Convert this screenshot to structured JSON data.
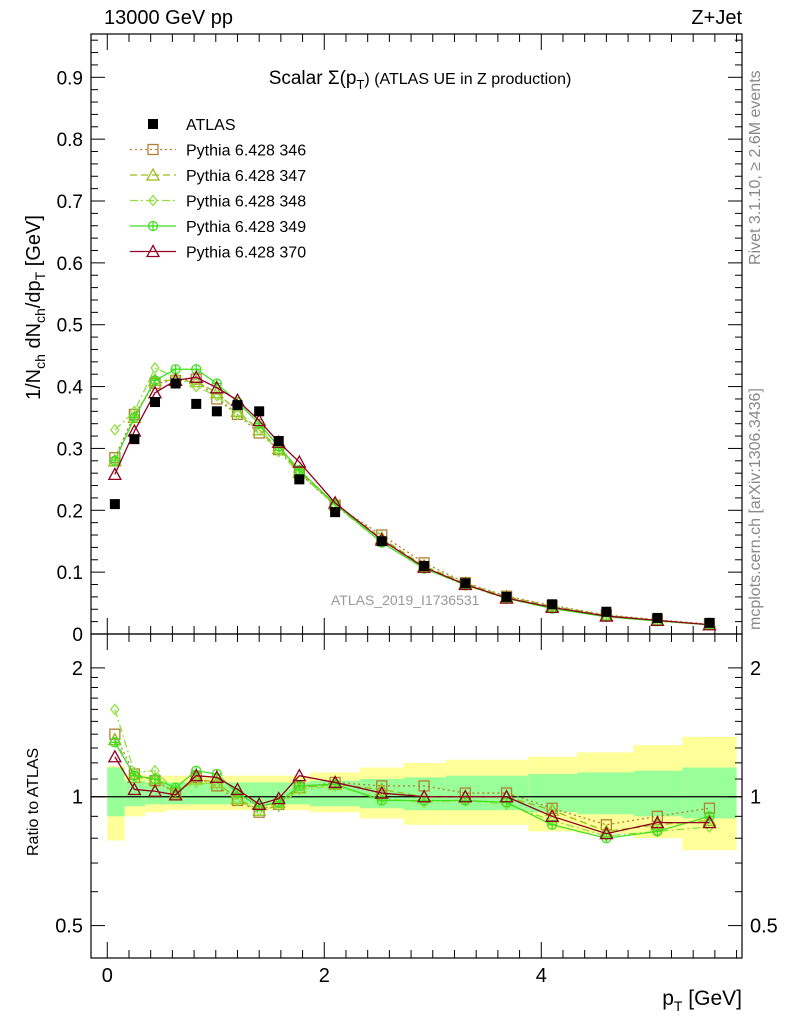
{
  "header": {
    "left": "13000 GeV pp",
    "right": "Z+Jet"
  },
  "side_labels": {
    "rivet": "Rivet 3.1.10, ≥ 2.6M events",
    "mcplots": "mcplots.cern.ch [arXiv:1306.3436]"
  },
  "watermark": "ATLAS_2019_I1736531",
  "chart_data": [
    {
      "type": "scatter",
      "panel": "main",
      "title_main": "Scalar Σ(p",
      "title_sub": "T",
      "title_tail": ") (ATLAS UE in Z production)",
      "ylabel": "1/N_ch dN_ch/dp_T [GeV]",
      "ylim": [
        0,
        0.97
      ],
      "yticks": [
        "0",
        "0.1",
        "0.2",
        "0.3",
        "0.4",
        "0.5",
        "0.6",
        "0.7",
        "0.8",
        "0.9"
      ],
      "xlim": [
        -0.15,
        5.85
      ],
      "x": [
        0.07,
        0.25,
        0.44,
        0.63,
        0.82,
        1.01,
        1.2,
        1.4,
        1.58,
        1.77,
        2.1,
        2.53,
        2.92,
        3.3,
        3.68,
        4.1,
        4.6,
        5.07,
        5.55
      ],
      "series": [
        {
          "name": "ATLAS",
          "values": [
            0.21,
            0.315,
            0.375,
            0.405,
            0.372,
            0.36,
            0.37,
            0.36,
            0.312,
            0.25,
            0.197,
            0.15,
            0.11,
            0.082,
            0.06,
            0.048,
            0.036,
            0.026,
            0.018
          ]
        },
        {
          "name": "Pythia 6.428 346",
          "values": [
            0.285,
            0.355,
            0.405,
            0.41,
            0.412,
            0.38,
            0.355,
            0.325,
            0.298,
            0.26,
            0.208,
            0.16,
            0.115,
            0.083,
            0.061,
            0.046,
            0.031,
            0.023,
            0.016
          ]
        },
        {
          "name": "Pythia 6.428 347",
          "values": [
            0.28,
            0.35,
            0.41,
            0.41,
            0.408,
            0.39,
            0.36,
            0.33,
            0.3,
            0.262,
            0.21,
            0.155,
            0.11,
            0.082,
            0.06,
            0.045,
            0.03,
            0.022,
            0.015
          ]
        },
        {
          "name": "Pythia 6.428 348",
          "values": [
            0.33,
            0.36,
            0.43,
            0.415,
            0.4,
            0.385,
            0.355,
            0.33,
            0.295,
            0.26,
            0.208,
            0.148,
            0.106,
            0.079,
            0.057,
            0.042,
            0.028,
            0.021,
            0.015
          ]
        },
        {
          "name": "Pythia 6.428 349",
          "values": [
            0.28,
            0.35,
            0.41,
            0.428,
            0.428,
            0.405,
            0.375,
            0.34,
            0.303,
            0.265,
            0.21,
            0.148,
            0.106,
            0.08,
            0.058,
            0.041,
            0.028,
            0.021,
            0.015
          ]
        },
        {
          "name": "Pythia 6.428 370",
          "values": [
            0.258,
            0.328,
            0.39,
            0.41,
            0.415,
            0.398,
            0.378,
            0.345,
            0.31,
            0.278,
            0.212,
            0.152,
            0.108,
            0.08,
            0.058,
            0.043,
            0.029,
            0.022,
            0.015
          ]
        }
      ],
      "legend_position": "top-left"
    },
    {
      "type": "scatter",
      "panel": "ratio",
      "ylabel": "Ratio to ATLAS",
      "xlabel_main": "p",
      "xlabel_sub": "T",
      "xlabel_tail": " [GeV]",
      "ylim": [
        0.42,
        2.4
      ],
      "ylog": true,
      "yticks": [
        "0.5",
        "1",
        "2"
      ],
      "xticks": [
        "0",
        "2",
        "4"
      ],
      "x": [
        0.07,
        0.25,
        0.44,
        0.63,
        0.82,
        1.01,
        1.2,
        1.4,
        1.58,
        1.77,
        2.1,
        2.53,
        2.92,
        3.3,
        3.68,
        4.1,
        4.6,
        5.07,
        5.55
      ],
      "bin_edges": [
        0.0,
        0.16,
        0.35,
        0.54,
        0.73,
        0.92,
        1.11,
        1.3,
        1.49,
        1.68,
        1.87,
        2.33,
        2.73,
        3.12,
        3.49,
        3.88,
        4.33,
        4.85,
        5.3,
        5.8
      ],
      "band_green": [
        [
          0.9,
          1.17
        ],
        [
          0.95,
          1.09
        ],
        [
          0.96,
          1.08
        ],
        [
          0.96,
          1.08
        ],
        [
          0.96,
          1.08
        ],
        [
          0.96,
          1.08
        ],
        [
          0.96,
          1.08
        ],
        [
          0.96,
          1.08
        ],
        [
          0.96,
          1.08
        ],
        [
          0.96,
          1.08
        ],
        [
          0.95,
          1.09
        ],
        [
          0.94,
          1.1
        ],
        [
          0.93,
          1.11
        ],
        [
          0.93,
          1.12
        ],
        [
          0.93,
          1.12
        ],
        [
          0.92,
          1.13
        ],
        [
          0.91,
          1.14
        ],
        [
          0.9,
          1.15
        ],
        [
          0.89,
          1.17
        ]
      ],
      "band_yellow": [
        [
          0.79,
          1.18
        ],
        [
          0.9,
          1.13
        ],
        [
          0.92,
          1.12
        ],
        [
          0.93,
          1.12
        ],
        [
          0.93,
          1.12
        ],
        [
          0.93,
          1.12
        ],
        [
          0.93,
          1.12
        ],
        [
          0.93,
          1.12
        ],
        [
          0.93,
          1.12
        ],
        [
          0.93,
          1.12
        ],
        [
          0.92,
          1.14
        ],
        [
          0.89,
          1.17
        ],
        [
          0.86,
          1.2
        ],
        [
          0.86,
          1.22
        ],
        [
          0.86,
          1.22
        ],
        [
          0.83,
          1.24
        ],
        [
          0.82,
          1.27
        ],
        [
          0.8,
          1.32
        ],
        [
          0.75,
          1.38
        ]
      ],
      "series": [
        {
          "name": "Pythia 6.428 346",
          "values": [
            1.4,
            1.13,
            1.09,
            1.02,
            1.11,
            1.06,
            0.98,
            0.92,
            0.96,
            1.05,
            1.08,
            1.06,
            1.06,
            1.02,
            1.02,
            0.94,
            0.86,
            0.9,
            0.94
          ]
        },
        {
          "name": "Pythia 6.428 347",
          "values": [
            1.36,
            1.11,
            1.1,
            1.02,
            1.1,
            1.08,
            0.99,
            0.93,
            0.97,
            1.05,
            1.07,
            1.04,
            1.0,
            1.0,
            1.0,
            0.93,
            0.83,
            0.86,
            0.88
          ]
        },
        {
          "name": "Pythia 6.428 348",
          "values": [
            1.6,
            1.14,
            1.15,
            1.03,
            1.08,
            1.07,
            0.98,
            0.93,
            0.95,
            1.04,
            1.06,
            0.99,
            0.97,
            0.98,
            0.96,
            0.88,
            0.81,
            0.83,
            0.85
          ]
        },
        {
          "name": "Pythia 6.428 349",
          "values": [
            1.34,
            1.12,
            1.1,
            1.05,
            1.15,
            1.13,
            1.02,
            0.95,
            0.97,
            1.06,
            1.07,
            0.98,
            0.98,
            0.98,
            0.97,
            0.86,
            0.8,
            0.83,
            0.9
          ]
        },
        {
          "name": "Pythia 6.428 370",
          "values": [
            1.24,
            1.04,
            1.03,
            1.01,
            1.12,
            1.11,
            1.04,
            0.96,
            0.99,
            1.12,
            1.08,
            1.02,
            1.0,
            1.0,
            1.0,
            0.9,
            0.82,
            0.87,
            0.87
          ]
        }
      ]
    }
  ],
  "styles": [
    {
      "color": "#000000",
      "marker": "square-filled",
      "dash": ""
    },
    {
      "color": "#b08030",
      "marker": "square-open",
      "dash": "2,3"
    },
    {
      "color": "#9aba1a",
      "marker": "triangle-open",
      "dash": "7,4"
    },
    {
      "color": "#90e040",
      "marker": "diamond-open",
      "dash": "8,3,2,3"
    },
    {
      "color": "#40e020",
      "marker": "cross-circle",
      "dash": ""
    },
    {
      "color": "#900020",
      "marker": "triangle-open",
      "dash": ""
    }
  ]
}
